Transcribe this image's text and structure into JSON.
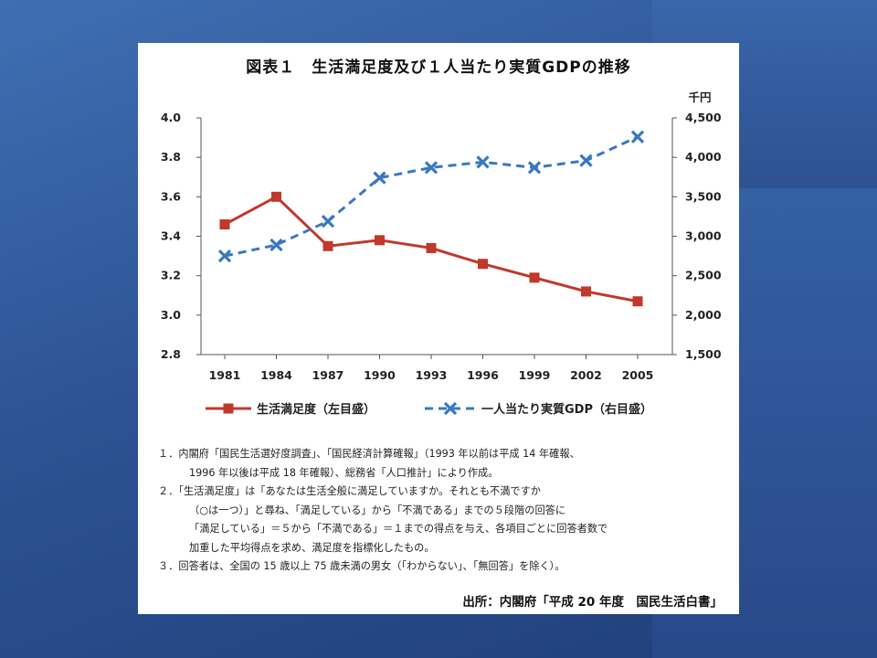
{
  "chart_data": {
    "type": "line",
    "title": "図表１　生活満足度及び１人当たり実質GDPの推移",
    "x": [
      "1981",
      "1984",
      "1987",
      "1990",
      "1993",
      "1996",
      "1999",
      "2002",
      "2005"
    ],
    "y_left": {
      "ylim": [
        2.8,
        4.0
      ],
      "ticks": [
        "4.0",
        "3.8",
        "3.6",
        "3.4",
        "3.2",
        "3.0",
        "2.8"
      ]
    },
    "y_right": {
      "unit": "千円",
      "ylim": [
        1500,
        4500
      ],
      "ticks": [
        "4,500",
        "4,000",
        "3,500",
        "3,000",
        "2,500",
        "2,000",
        "1,500"
      ]
    },
    "series": [
      {
        "name": "生活満足度（左目盛）",
        "axis": "left",
        "color": "#c0392b",
        "marker": "square",
        "line": "solid",
        "values": [
          3.46,
          3.6,
          3.35,
          3.38,
          3.34,
          3.26,
          3.19,
          3.12,
          3.07
        ]
      },
      {
        "name": "一人当たり実質GDP（右目盛）",
        "axis": "right",
        "color": "#3a78bd",
        "marker": "x",
        "line": "dashed",
        "values": [
          2750,
          2890,
          3190,
          3740,
          3870,
          3940,
          3870,
          3960,
          4260
        ]
      }
    ],
    "grid": false,
    "legend_position": "bottom"
  },
  "notes": [
    "１．内閣府「国民生活選好度調査」、「国民経済計算確報」（1993 年以前は平成 14 年確報、",
    "1996 年以後は平成 18 年確報）、総務省「人口推計」により作成。",
    "２．「生活満足度」は「あなたは生活全般に満足していますか。それとも不満ですか",
    "（○は一つ）」と尋ね、「満足している」から「不満である」までの５段階の回答に",
    "「満足している」＝５から「不満である」＝１までの得点を与え、各項目ごとに回答者数で",
    "加重した平均得点を求め、満足度を指標化したもの。",
    "３．回答者は、全国の 15 歳以上 75 歳未満の男女（「わからない」、「無回答」を除く）。"
  ],
  "source": "出所：内閣府「平成 20 年度　国民生活白書」"
}
